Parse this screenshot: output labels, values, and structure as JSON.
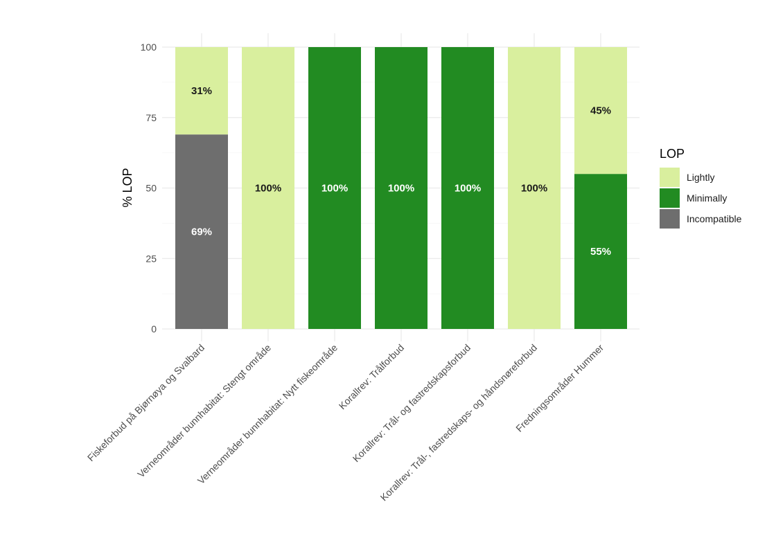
{
  "chart_data": {
    "type": "bar",
    "stacked": true,
    "ylabel": "% LOP",
    "xlabel": "",
    "ylim": [
      0,
      100
    ],
    "yticks": [
      0,
      25,
      50,
      75,
      100
    ],
    "grid": true,
    "legend": {
      "title": "LOP",
      "position": "right",
      "entries": [
        "Lightly",
        "Minimally",
        "Incompatible"
      ]
    },
    "colors": {
      "Lightly": "#d9ef9e",
      "Minimally": "#228b22",
      "Incompatible": "#6e6e6e"
    },
    "categories": [
      "Fiskeforbud på Bjørnøya og Svalbard",
      "Verneområder bunnhabitat: Stengt område",
      "Verneområder bunnhabitat: Nytt fiskeområde",
      "Korallrev: Trålforbud",
      "Korallrev: Trål- og fastredskapsforbud",
      "Korallrev: Trål-, fastredskaps- og håndsnøreforbud",
      "Fredningsområder Hummer"
    ],
    "series": [
      {
        "name": "Incompatible",
        "values": [
          69,
          0,
          0,
          0,
          0,
          0,
          0
        ]
      },
      {
        "name": "Minimally",
        "values": [
          0,
          0,
          100,
          100,
          100,
          0,
          55
        ]
      },
      {
        "name": "Lightly",
        "values": [
          31,
          100,
          0,
          0,
          0,
          100,
          45
        ]
      }
    ],
    "data_labels": [
      [
        {
          "series": "Lightly",
          "text": "31%"
        },
        {
          "series": "Incompatible",
          "text": "69%"
        }
      ],
      [
        {
          "series": "Lightly",
          "text": "100%"
        }
      ],
      [
        {
          "series": "Minimally",
          "text": "100%"
        }
      ],
      [
        {
          "series": "Minimally",
          "text": "100%"
        }
      ],
      [
        {
          "series": "Minimally",
          "text": "100%"
        }
      ],
      [
        {
          "series": "Lightly",
          "text": "100%"
        }
      ],
      [
        {
          "series": "Lightly",
          "text": "45%"
        },
        {
          "series": "Minimally",
          "text": "55%"
        }
      ]
    ]
  }
}
